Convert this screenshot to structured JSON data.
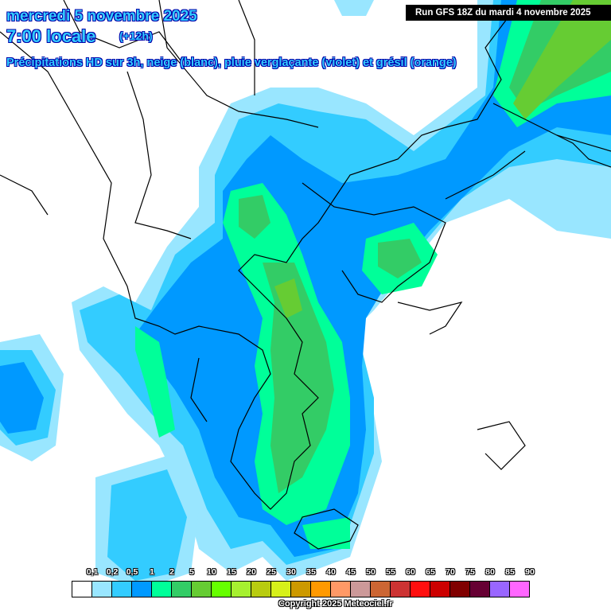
{
  "header": {
    "date": "mercredi 5 novembre 2025",
    "time": "7:00 locale",
    "lead": "(+12h)",
    "description": "Précipitations HD sur 3h, neige (blanc), pluie verglaçante (violet) et grésil (orange)",
    "run": "Run GFS 18Z du mardi 4 novembre 2025"
  },
  "legend": {
    "labels": [
      "0,1",
      "0,2",
      "0,5",
      "1",
      "2",
      "5",
      "10",
      "15",
      "20",
      "25",
      "30",
      "35",
      "40",
      "45",
      "50",
      "55",
      "60",
      "65",
      "70",
      "75",
      "80",
      "85",
      "90"
    ],
    "colors": [
      "#ffffff",
      "#99e6ff",
      "#33ccff",
      "#0099ff",
      "#00ff99",
      "#33cc66",
      "#66cc33",
      "#66ff00",
      "#a6f030",
      "#b8cc10",
      "#d6f01a",
      "#cc9900",
      "#ff9900",
      "#ff9966",
      "#cc9999",
      "#cc6633",
      "#cc3333",
      "#ff0f0f",
      "#cc0000",
      "#800000",
      "#660033",
      "#9966ff",
      "#ff66ff"
    ]
  },
  "copyright": "Copyright 2025 Meteociel.fr"
}
